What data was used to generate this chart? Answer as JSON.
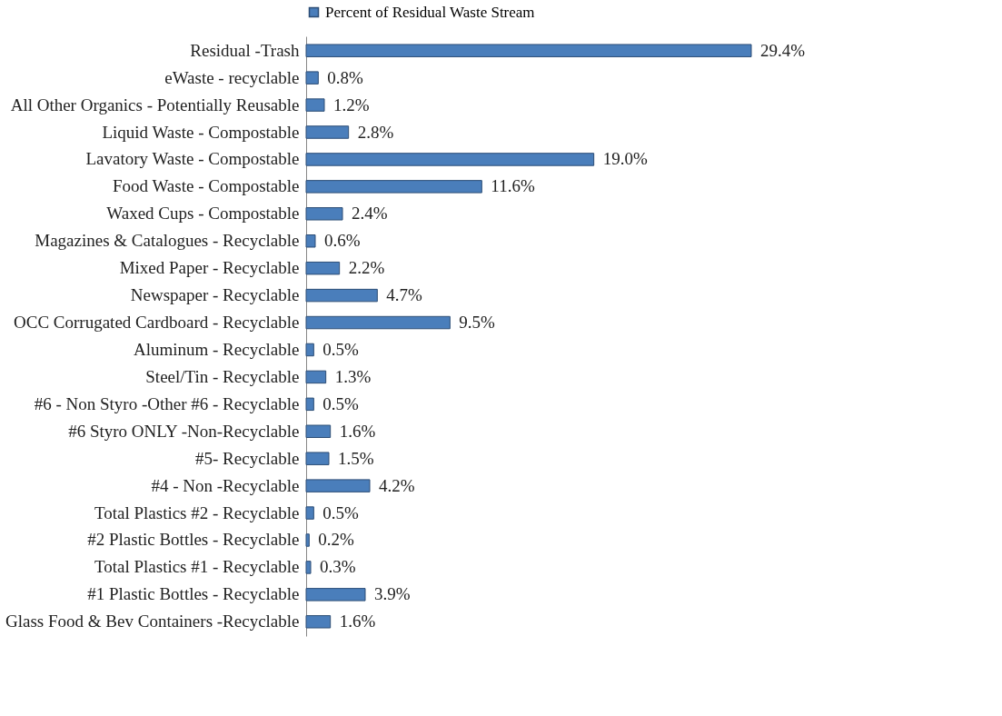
{
  "chart_data": {
    "type": "bar",
    "orientation": "horizontal",
    "legend": "top",
    "categories": [
      "Residual -Trash",
      "eWaste - recyclable",
      "All Other Organics - Potentially Reusable",
      "Liquid Waste - Compostable",
      "Lavatory Waste - Compostable",
      "Food Waste - Compostable",
      "Waxed Cups - Compostable",
      "Magazines & Catalogues - Recyclable",
      "Mixed Paper - Recyclable",
      "Newspaper - Recyclable",
      "OCC Corrugated Cardboard - Recyclable",
      "Aluminum - Recyclable",
      "Steel/Tin - Recyclable",
      "#6 - Non Styro -Other #6 - Recyclable",
      "#6 Styro ONLY -Non-Recyclable",
      "#5- Recyclable",
      "#4  - Non -Recyclable",
      "Total Plastics #2 - Recyclable",
      "#2 Plastic Bottles - Recyclable",
      "Total Plastics #1 - Recyclable",
      "#1 Plastic Bottles - Recyclable",
      "Glass Food & Bev Containers -Recyclable"
    ],
    "series": [
      {
        "name": "Percent of Residual Waste Stream",
        "color": "#4a7ebb",
        "values": [
          29.4,
          0.8,
          1.2,
          2.8,
          19.0,
          11.6,
          2.4,
          0.6,
          2.2,
          4.7,
          9.5,
          0.5,
          1.3,
          0.5,
          1.6,
          1.5,
          4.2,
          0.5,
          0.2,
          0.3,
          3.9,
          1.6
        ],
        "value_labels": [
          "29.4%",
          "0.8%",
          "1.2%",
          "2.8%",
          "19.0%",
          "11.6%",
          "2.4%",
          "0.6%",
          "2.2%",
          "4.7%",
          "9.5%",
          "0.5%",
          "1.3%",
          "0.5%",
          "1.6%",
          "1.5%",
          "4.2%",
          "0.5%",
          "0.2%",
          "0.3%",
          "3.9%",
          "1.6%"
        ]
      }
    ]
  }
}
